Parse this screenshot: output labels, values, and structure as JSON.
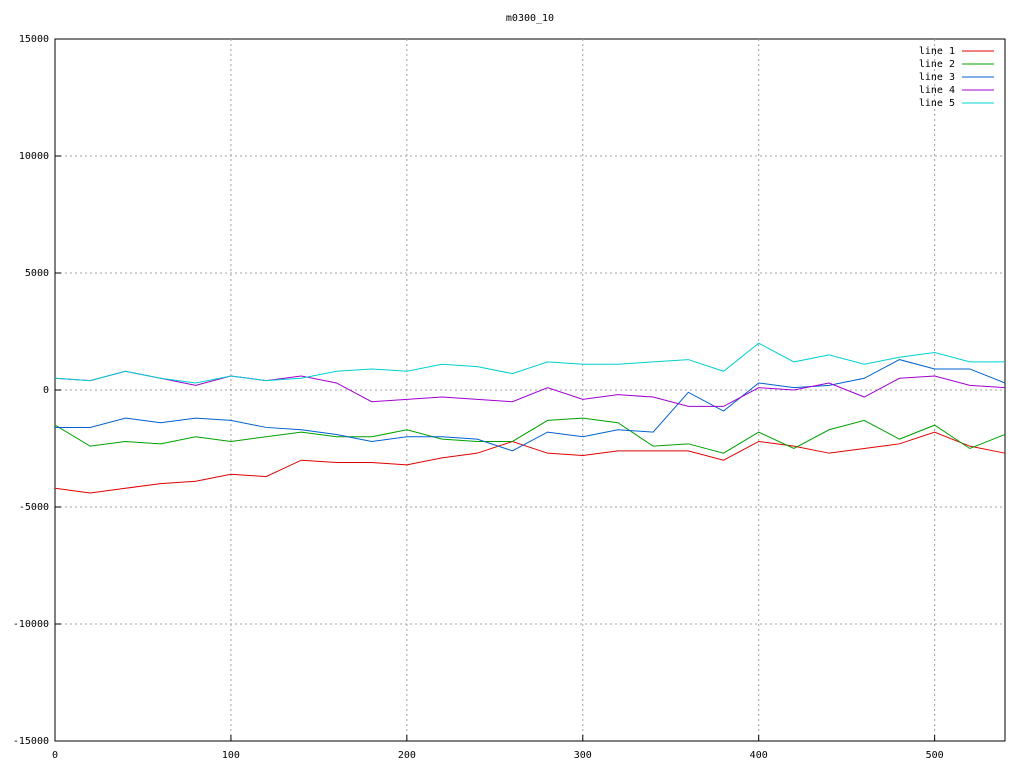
{
  "chart_data": {
    "type": "line",
    "title": "m0300_10",
    "x": [
      0,
      20,
      40,
      60,
      80,
      100,
      120,
      140,
      160,
      180,
      200,
      220,
      240,
      260,
      280,
      300,
      320,
      340,
      360,
      380,
      400,
      420,
      440,
      460,
      480,
      500,
      520,
      540
    ],
    "xlim": [
      0,
      540
    ],
    "xticks": [
      0,
      100,
      200,
      300,
      400,
      500
    ],
    "ylim": [
      -15000,
      15000
    ],
    "yticks": [
      -15000,
      -10000,
      -5000,
      0,
      5000,
      10000,
      15000
    ],
    "grid": true,
    "legend": "top-right",
    "series": [
      {
        "name": "line 1",
        "color": "#e00000",
        "values": [
          -4200,
          -4400,
          -4200,
          -4000,
          -3900,
          -3600,
          -3700,
          -3000,
          -3100,
          -3100,
          -3200,
          -2900,
          -2700,
          -2200,
          -2700,
          -2800,
          -2600,
          -2600,
          -2600,
          -3000,
          -2200,
          -2400,
          -2700,
          -2500,
          -2300,
          -1800,
          -2400,
          -2700
        ]
      },
      {
        "name": "line 2",
        "color": "#00a000",
        "values": [
          -1500,
          -2400,
          -2200,
          -2300,
          -2000,
          -2200,
          -2000,
          -1800,
          -2000,
          -2000,
          -1700,
          -2100,
          -2200,
          -2200,
          -1300,
          -1200,
          -1400,
          -2400,
          -2300,
          -2700,
          -1800,
          -2500,
          -1700,
          -1300,
          -2100,
          -1500,
          -2500,
          -1900
        ]
      },
      {
        "name": "line 3",
        "color": "#0060d0",
        "values": [
          -1600,
          -1600,
          -1200,
          -1400,
          -1200,
          -1300,
          -1600,
          -1700,
          -1900,
          -2200,
          -2000,
          -2000,
          -2100,
          -2600,
          -1800,
          -2000,
          -1700,
          -1800,
          -100,
          -900,
          300,
          100,
          200,
          500,
          1300,
          900,
          900,
          300
        ]
      },
      {
        "name": "line 4",
        "color": "#a000d0",
        "values": [
          500,
          400,
          800,
          500,
          200,
          600,
          400,
          600,
          300,
          -500,
          -400,
          -300,
          -400,
          -500,
          100,
          -400,
          -200,
          -300,
          -700,
          -700,
          100,
          0,
          300,
          -300,
          500,
          600,
          200,
          100
        ]
      },
      {
        "name": "line 5",
        "color": "#00d0d0",
        "values": [
          500,
          400,
          800,
          500,
          300,
          600,
          400,
          500,
          800,
          900,
          800,
          1100,
          1000,
          700,
          1200,
          1100,
          1100,
          1200,
          1300,
          800,
          2000,
          1200,
          1500,
          1100,
          1400,
          1600,
          1200,
          1200
        ]
      }
    ]
  }
}
